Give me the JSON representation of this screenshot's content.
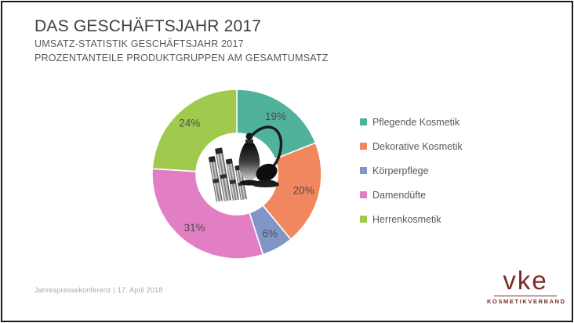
{
  "slide": {
    "title": "DAS GESCHÄFTSJAHR 2017",
    "subtitle_line1": "UMSATZ-STATISTIK GESCHÄFTSJAHR 2017",
    "subtitle_line2": "PROZENTANTEILE PRODUKTGRUPPEN AM GESAMTUMSATZ",
    "footer": "Jahrespressekonferenz | 17. April 2018"
  },
  "logo": {
    "wordmark": "vke",
    "subtext": "KOSMETIKVERBAND",
    "color": "#7b2c27"
  },
  "chart_data": {
    "type": "pie",
    "subtype": "donut",
    "title": "PROZENTANTEILE PRODUKTGRUPPEN AM GESAMTUMSATZ",
    "categories": [
      "Pflegende Kosmetik",
      "Dekorative Kosmetik",
      "Körperpflege",
      "Damendüfte",
      "Herrenkosmetik"
    ],
    "values": [
      19,
      20,
      6,
      31,
      24
    ],
    "unit": "%",
    "data_labels": [
      "19%",
      "20%",
      "6%",
      "31%",
      "24%"
    ],
    "colors": [
      "#50b29a",
      "#f1875f",
      "#8196c7",
      "#e27fc4",
      "#a0ca4d"
    ],
    "label_color": "#4d4d4d",
    "start_angle_deg": 0,
    "direction": "clockwise",
    "legend_position": "right",
    "center_image": "perfume-atomizer-and-cosmetic-pencils"
  }
}
